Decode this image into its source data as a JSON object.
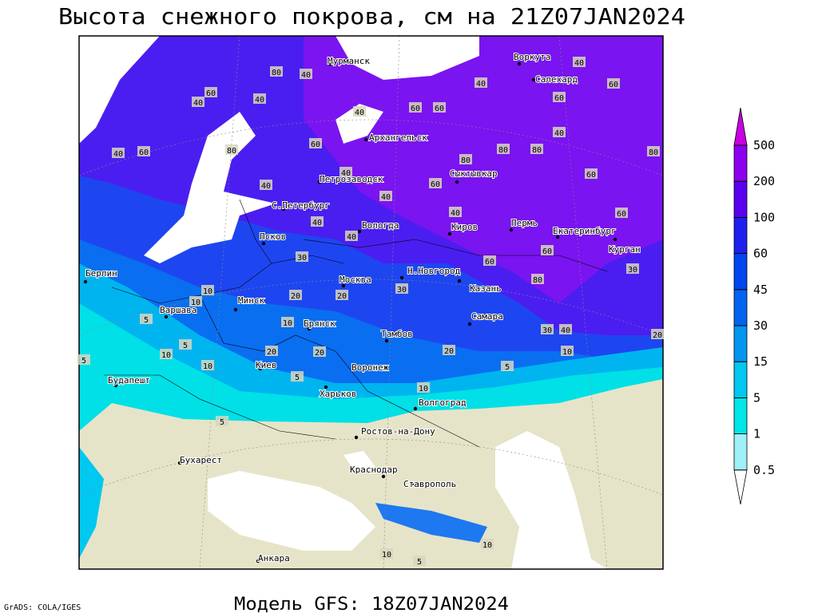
{
  "title": "Высота снежного покрова, см на 21Z07JAN2024",
  "footer": "Модель GFS: 18Z07JAN2024",
  "credit": "GrADS: COLA/IGES",
  "legend": {
    "levels": [
      0.5,
      1,
      5,
      15,
      30,
      45,
      60,
      100,
      200,
      500
    ],
    "colors": [
      "#ffffff",
      "#a0f0f8",
      "#00e6e6",
      "#00c8f0",
      "#0096f0",
      "#0064f0",
      "#0046f0",
      "#1e1ef0",
      "#5a00f0",
      "#8c00f0",
      "#c800e0"
    ]
  },
  "cities": [
    "Мурманск",
    "Воркута",
    "Салехард",
    "Архангельск",
    "Сыктывкар",
    "Петрозаводск",
    "С.Петербург",
    "Вологда",
    "Киров",
    "Пермь",
    "Екатеринбург",
    "Курган",
    "Псков",
    "Берлин",
    "Москва",
    "Н.Новгород",
    "Казань",
    "Минск",
    "Варшава",
    "Брянск",
    "Тамбов",
    "Самара",
    "Киев",
    "Воронеж",
    "Будапешт",
    "Харьков",
    "Волгоград",
    "Ростов-на-Дону",
    "Бухарест",
    "Краснодар",
    "Ставрополь",
    "Анкара"
  ],
  "contour_labels": [
    40,
    60,
    40,
    60,
    80,
    40,
    60,
    40,
    80,
    40,
    40,
    40,
    40,
    60,
    60,
    40,
    80,
    80,
    80,
    40,
    60,
    60,
    80,
    40,
    60,
    60,
    60,
    40,
    40,
    40,
    30,
    60,
    80,
    60,
    30,
    30,
    20,
    20,
    10,
    10,
    10,
    20,
    20,
    20,
    30,
    40,
    10,
    20,
    5,
    10,
    5,
    10,
    5,
    5,
    10,
    5,
    5,
    10,
    5,
    10
  ]
}
